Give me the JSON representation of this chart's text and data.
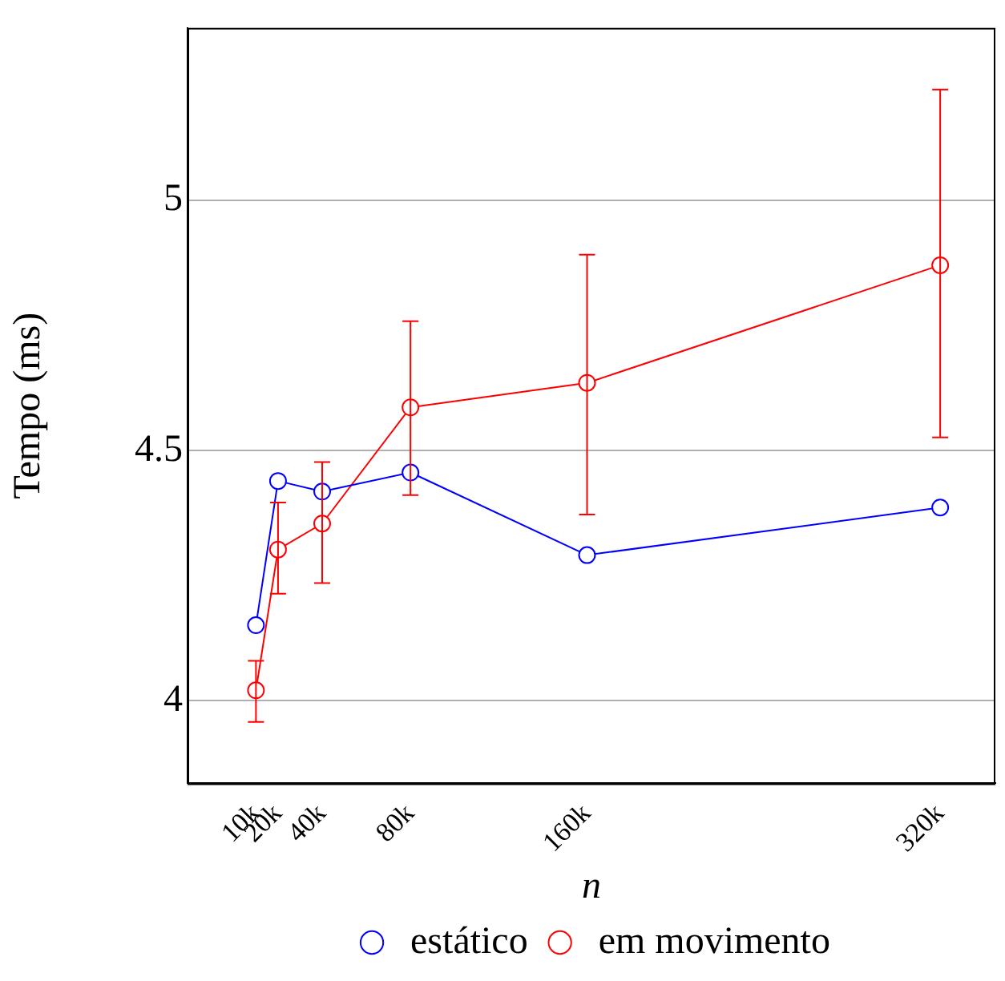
{
  "chart_data": {
    "type": "line",
    "xlabel": "n",
    "ylabel": "Tempo (ms)",
    "x": [
      10000,
      20000,
      40000,
      80000,
      160000,
      320000
    ],
    "xlim": [
      -21000,
      345000
    ],
    "xticks": [
      {
        "value": 10000,
        "label": "10k"
      },
      {
        "value": 20000,
        "label": "20k"
      },
      {
        "value": 40000,
        "label": "40k"
      },
      {
        "value": 80000,
        "label": "80k"
      },
      {
        "value": 160000,
        "label": "160k"
      },
      {
        "value": 320000,
        "label": "320k"
      }
    ],
    "ylim": [
      3.835,
      5.344
    ],
    "yticks": [
      4,
      4.5,
      5
    ],
    "series": [
      {
        "name": "estático",
        "color": "#0000ff",
        "values": [
          4.151,
          4.439,
          4.418,
          4.456,
          4.291,
          4.386
        ]
      },
      {
        "name": "em movimento",
        "color": "#ff0000",
        "values": [
          4.021,
          4.302,
          4.354,
          4.586,
          4.635,
          4.87
        ],
        "errors": [
          [
            3.958,
            4.08
          ],
          [
            4.214,
            4.396
          ],
          [
            4.235,
            4.477
          ],
          [
            4.411,
            4.758
          ],
          [
            4.372,
            4.891
          ],
          [
            4.526,
            5.221
          ]
        ]
      }
    ],
    "grid": "y",
    "legend": "bottom",
    "marker": "circle",
    "line_style": "solid"
  }
}
